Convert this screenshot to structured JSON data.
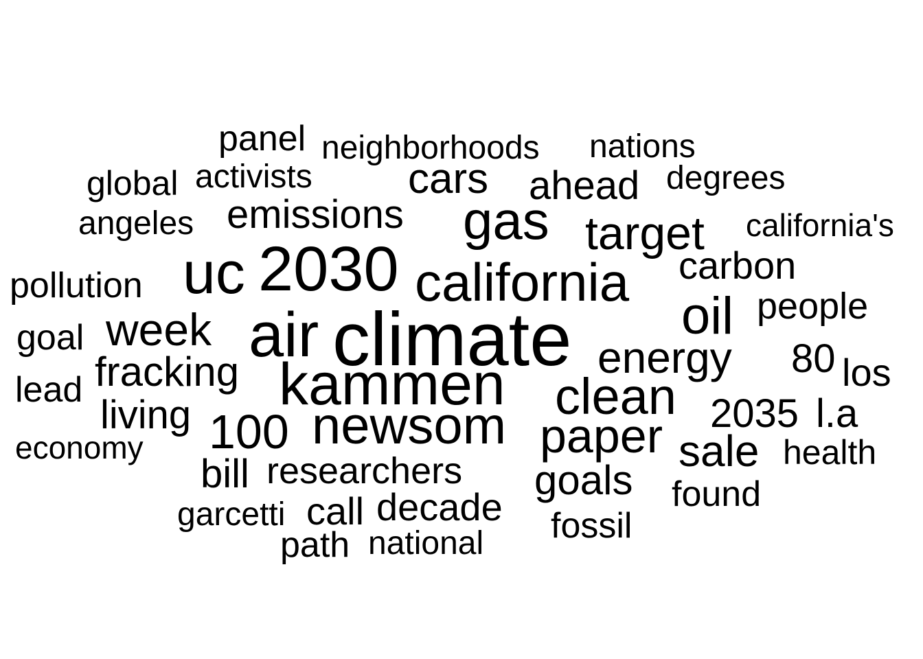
{
  "word_cloud": {
    "text_color": "#000000",
    "background_color": "#ffffff",
    "words": [
      {
        "text": "climate",
        "weight": 100
      },
      {
        "text": "air",
        "weight": 92
      },
      {
        "text": "2030",
        "weight": 88
      },
      {
        "text": "kammen",
        "weight": 86
      },
      {
        "text": "uc",
        "weight": 86
      },
      {
        "text": "newsom",
        "weight": 82
      },
      {
        "text": "california",
        "weight": 80
      },
      {
        "text": "gas",
        "weight": 80
      },
      {
        "text": "oil",
        "weight": 78
      },
      {
        "text": "clean",
        "weight": 76
      },
      {
        "text": "paper",
        "weight": 76
      },
      {
        "text": "100",
        "weight": 72
      },
      {
        "text": "target",
        "weight": 70
      },
      {
        "text": "energy",
        "weight": 68
      },
      {
        "text": "week",
        "weight": 66
      },
      {
        "text": "sale",
        "weight": 64
      },
      {
        "text": "cars",
        "weight": 62
      },
      {
        "text": "emissions",
        "weight": 60
      },
      {
        "text": "fracking",
        "weight": 60
      },
      {
        "text": "goals",
        "weight": 60
      },
      {
        "text": "ahead",
        "weight": 58
      },
      {
        "text": "2035",
        "weight": 58
      },
      {
        "text": "l.a",
        "weight": 58
      },
      {
        "text": "living",
        "weight": 58
      },
      {
        "text": "carbon",
        "weight": 56
      },
      {
        "text": "decade",
        "weight": 56
      },
      {
        "text": "call",
        "weight": 56
      },
      {
        "text": "80",
        "weight": 56
      },
      {
        "text": "bill",
        "weight": 56
      },
      {
        "text": "researchers",
        "weight": 54
      },
      {
        "text": "people",
        "weight": 54
      },
      {
        "text": "los",
        "weight": 54
      },
      {
        "text": "path",
        "weight": 52
      },
      {
        "text": "pollution",
        "weight": 52
      },
      {
        "text": "fossil",
        "weight": 50
      },
      {
        "text": "found",
        "weight": 50
      },
      {
        "text": "health",
        "weight": 50
      },
      {
        "text": "goal",
        "weight": 50
      },
      {
        "text": "lead",
        "weight": 50
      },
      {
        "text": "panel",
        "weight": 48
      },
      {
        "text": "neighborhoods",
        "weight": 48
      },
      {
        "text": "nations",
        "weight": 48
      },
      {
        "text": "global",
        "weight": 48
      },
      {
        "text": "activists",
        "weight": 46
      },
      {
        "text": "degrees",
        "weight": 46
      },
      {
        "text": "angeles",
        "weight": 46
      },
      {
        "text": "california's",
        "weight": 44
      },
      {
        "text": "national",
        "weight": 46
      },
      {
        "text": "garcetti",
        "weight": 46
      },
      {
        "text": "economy",
        "weight": 44
      }
    ]
  }
}
